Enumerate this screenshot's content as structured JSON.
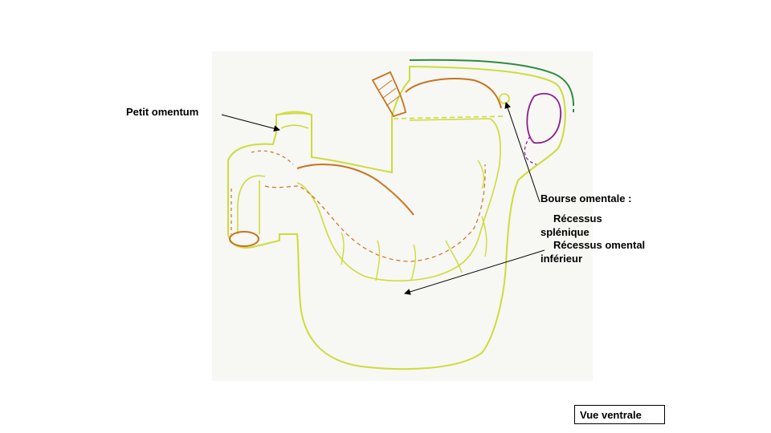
{
  "labels": {
    "petit_omentum": "Petit omentum",
    "bourse_omentale": "Bourse omentale :",
    "recessus_splenique_line1": "Récessus",
    "recessus_splenique_line2": "splénique",
    "recessus_inferieur_line1": "Récessus omental",
    "recessus_inferieur_line2": "inférieur"
  },
  "view_label": "Vue ventrale",
  "colors": {
    "outline": "#cddc39",
    "stomach_inner": "#c8741e",
    "spleen": "#8e1a8e",
    "dorsal_mesentery": "#2e8b3e",
    "photo_bg": "#f7f7f4"
  }
}
